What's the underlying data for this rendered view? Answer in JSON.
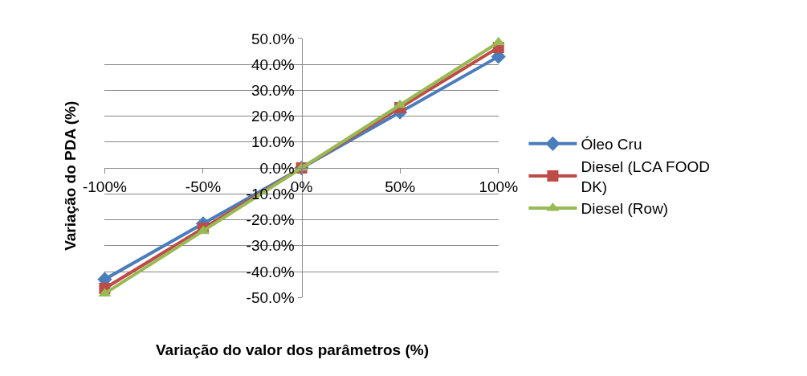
{
  "chart_data": {
    "type": "line",
    "xlabel": "Variação do valor dos parâmetros (%)",
    "ylabel": "Variação do PDA (%)",
    "categories": [
      "-100%",
      "-50%",
      "0%",
      "50%",
      "100%"
    ],
    "series": [
      {
        "name": "Óleo Cru",
        "color": "#4a7ebb",
        "marker": "diamond",
        "values": [
          -43,
          -21.5,
          0,
          21.5,
          43
        ]
      },
      {
        "name": "Diesel (LCA FOOD DK)",
        "color": "#be4b48",
        "marker": "square",
        "values": [
          -46.5,
          -23.3,
          0,
          23.3,
          46.5
        ]
      },
      {
        "name": "Diesel (Row)",
        "color": "#98b954",
        "marker": "triangle",
        "values": [
          -48.5,
          -24.3,
          0,
          24.3,
          48.5
        ]
      }
    ],
    "ylim": [
      -50,
      50
    ],
    "yticks": [
      {
        "value": -50,
        "label": "-50.0%"
      },
      {
        "value": -40,
        "label": "-40.0%"
      },
      {
        "value": -30,
        "label": "-30.0%"
      },
      {
        "value": -20,
        "label": "-20.0%"
      },
      {
        "value": -10,
        "label": "-10.0%"
      },
      {
        "value": 0,
        "label": "0.0%"
      },
      {
        "value": 10,
        "label": "10.0%"
      },
      {
        "value": 20,
        "label": "20.0%"
      },
      {
        "value": 30,
        "label": "30.0%"
      },
      {
        "value": 40,
        "label": "40.0%"
      },
      {
        "value": 50,
        "label": "50.0%"
      }
    ],
    "grid": "y",
    "legend": "right"
  }
}
